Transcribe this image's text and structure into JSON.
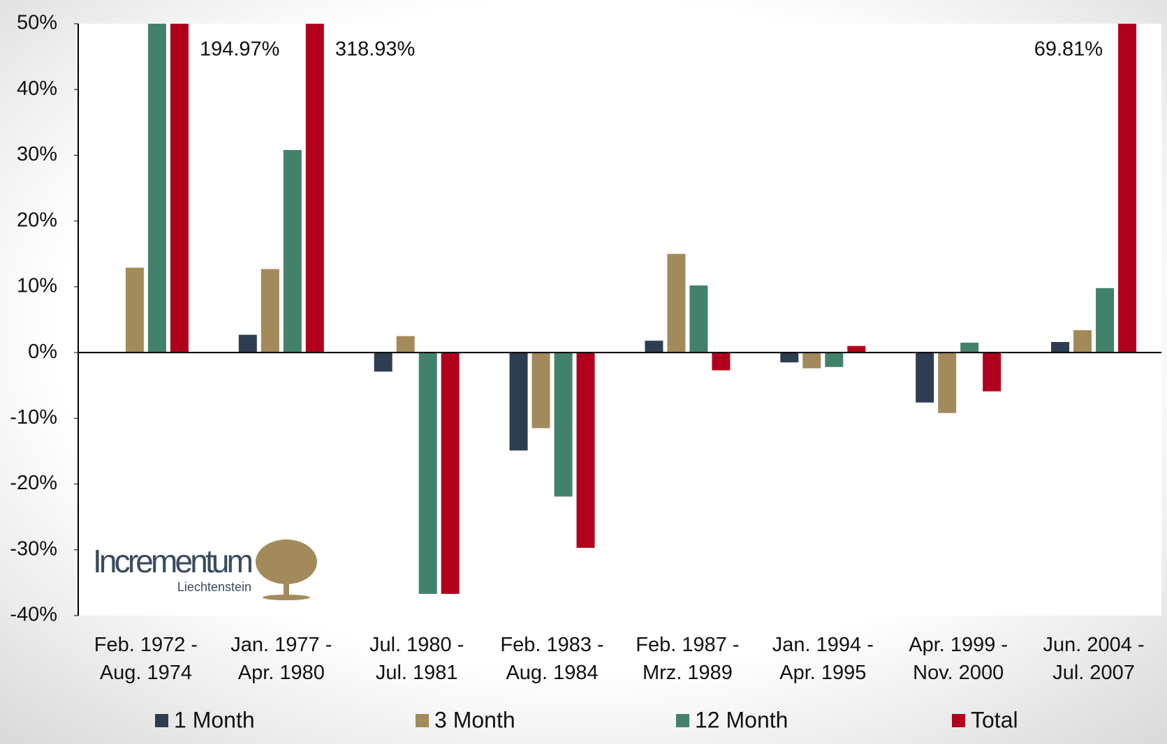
{
  "chart_data": {
    "type": "bar",
    "categories": [
      "Feb. 1972 -\nAug. 1974",
      "Jan. 1977 -\nApr. 1980",
      "Jul. 1980 -\nJul. 1981",
      "Feb. 1983 -\nAug. 1984",
      "Feb. 1987 -\nMrz. 1989",
      "Jan. 1994 -\nApr. 1995",
      "Apr. 1999 -\nNov. 2000",
      "Jun. 2004 -\nJul. 2007"
    ],
    "series": [
      {
        "name": "1 Month",
        "color": "#2e3d50",
        "values": [
          null,
          2.7,
          -2.9,
          -14.9,
          1.8,
          -1.5,
          -7.6,
          1.6
        ]
      },
      {
        "name": "3 Month",
        "color": "#a38a5a",
        "values": [
          12.9,
          12.7,
          2.5,
          -11.5,
          15.0,
          -2.4,
          -9.2,
          3.4
        ]
      },
      {
        "name": "12 Month",
        "color": "#43826a",
        "values": [
          50,
          30.8,
          -36.7,
          -21.9,
          10.2,
          -2.2,
          1.5,
          9.8
        ]
      },
      {
        "name": "Total",
        "color": "#b1001c",
        "values": [
          194.97,
          318.93,
          -36.7,
          -29.7,
          -2.7,
          1.0,
          -5.9,
          69.81
        ],
        "value_labels": [
          "194.97%",
          "318.93%",
          null,
          null,
          null,
          null,
          null,
          "69.81%"
        ]
      }
    ],
    "ylim": [
      -40,
      50
    ],
    "yticks": [
      {
        "value": -40,
        "label": "-40%"
      },
      {
        "value": -30,
        "label": "-30%"
      },
      {
        "value": -20,
        "label": "-20%"
      },
      {
        "value": -10,
        "label": "-10%"
      },
      {
        "value": 0,
        "label": "0%"
      },
      {
        "value": 10,
        "label": "10%"
      },
      {
        "value": 20,
        "label": "20%"
      },
      {
        "value": 30,
        "label": "30%"
      },
      {
        "value": 40,
        "label": "40%"
      },
      {
        "value": 50,
        "label": "50%"
      }
    ],
    "grid": false,
    "annotations": [
      "Incrementum",
      "Liechtenstein"
    ]
  }
}
